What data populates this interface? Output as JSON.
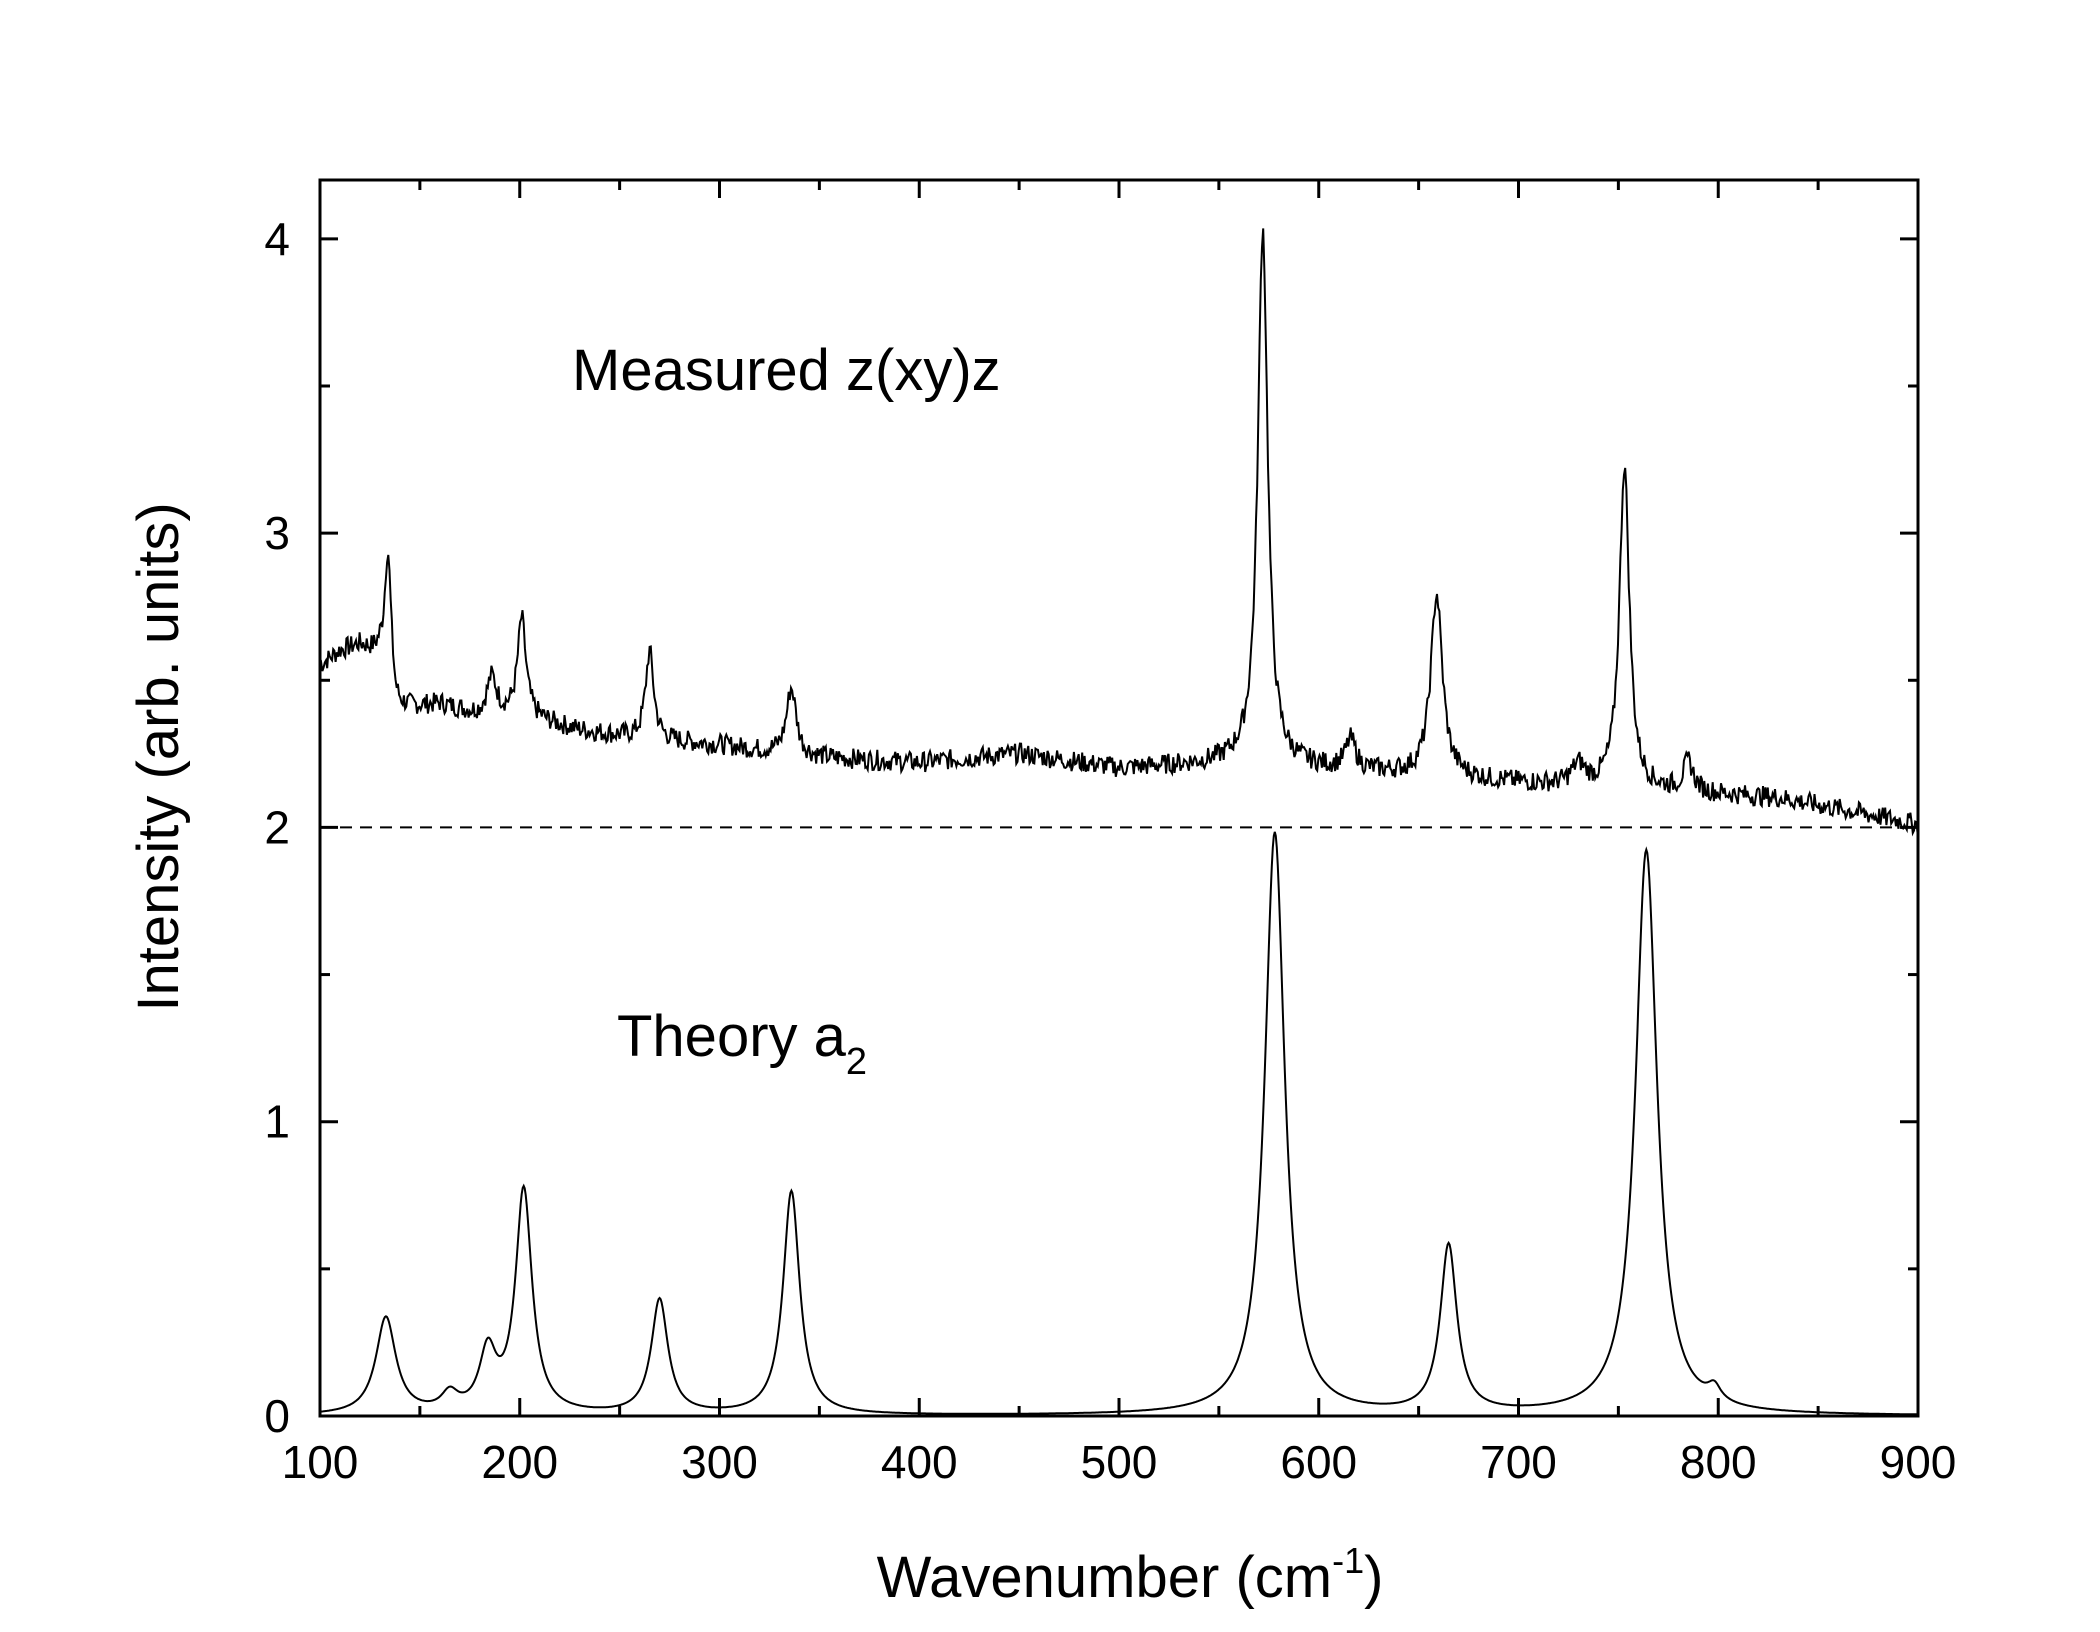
{
  "chart_data": {
    "type": "line",
    "xlabel": "Wavenumber (cm",
    "xlabel_sup": "-1",
    "xlabel_close": ")",
    "ylabel": "Intensity (arb. units)",
    "xlim": [
      100,
      900
    ],
    "ylim": [
      0,
      4.2
    ],
    "xticks": [
      100,
      200,
      300,
      400,
      500,
      600,
      700,
      800,
      900
    ],
    "yticks": [
      0,
      1,
      2,
      3,
      4
    ],
    "reference_line": {
      "y": 2,
      "style": "dashed"
    },
    "annotations": [
      {
        "text": "Measured z(xy)z",
        "series": "measured"
      },
      {
        "text": "Theory a",
        "subscript": "2",
        "series": "theory"
      }
    ],
    "series": [
      {
        "name": "Measured z(xy)z",
        "baseline_points": [
          [
            100,
            2.55
          ],
          [
            110,
            2.6
          ],
          [
            120,
            2.62
          ],
          [
            130,
            2.58
          ],
          [
            138,
            2.4
          ],
          [
            160,
            2.42
          ],
          [
            180,
            2.38
          ],
          [
            200,
            2.38
          ],
          [
            230,
            2.33
          ],
          [
            260,
            2.3
          ],
          [
            300,
            2.28
          ],
          [
            340,
            2.24
          ],
          [
            400,
            2.22
          ],
          [
            450,
            2.25
          ],
          [
            500,
            2.2
          ],
          [
            560,
            2.22
          ],
          [
            600,
            2.2
          ],
          [
            640,
            2.18
          ],
          [
            680,
            2.16
          ],
          [
            720,
            2.14
          ],
          [
            780,
            2.12
          ],
          [
            830,
            2.1
          ],
          [
            870,
            2.05
          ],
          [
            900,
            2.01
          ]
        ],
        "peaks": [
          {
            "x": 134,
            "height": 0.45,
            "width": 2.0
          },
          {
            "x": 186,
            "height": 0.13,
            "width": 3.0
          },
          {
            "x": 201,
            "height": 0.33,
            "width": 2.5
          },
          {
            "x": 265,
            "height": 0.3,
            "width": 2.5
          },
          {
            "x": 336,
            "height": 0.23,
            "width": 3.0
          },
          {
            "x": 572,
            "height": 1.82,
            "width": 3.0
          },
          {
            "x": 616,
            "height": 0.1,
            "width": 3.0
          },
          {
            "x": 659,
            "height": 0.62,
            "width": 3.5
          },
          {
            "x": 730,
            "height": 0.07,
            "width": 4.0
          },
          {
            "x": 753,
            "height": 1.1,
            "width": 3.0
          },
          {
            "x": 785,
            "height": 0.1,
            "width": 3.0
          }
        ],
        "noise_amplitude": 0.035
      },
      {
        "name": "Theory a2",
        "baseline": 0,
        "peaks": [
          {
            "x": 133,
            "height": 0.33,
            "width": 6.0
          },
          {
            "x": 165,
            "height": 0.06,
            "width": 5.0
          },
          {
            "x": 184,
            "height": 0.2,
            "width": 5.0
          },
          {
            "x": 202,
            "height": 0.76,
            "width": 5.0
          },
          {
            "x": 270,
            "height": 0.39,
            "width": 5.0
          },
          {
            "x": 336,
            "height": 0.76,
            "width": 5.0
          },
          {
            "x": 578,
            "height": 1.98,
            "width": 6.0
          },
          {
            "x": 665,
            "height": 0.57,
            "width": 5.0
          },
          {
            "x": 764,
            "height": 1.92,
            "width": 6.5
          },
          {
            "x": 798,
            "height": 0.05,
            "width": 4.0
          }
        ]
      }
    ]
  }
}
